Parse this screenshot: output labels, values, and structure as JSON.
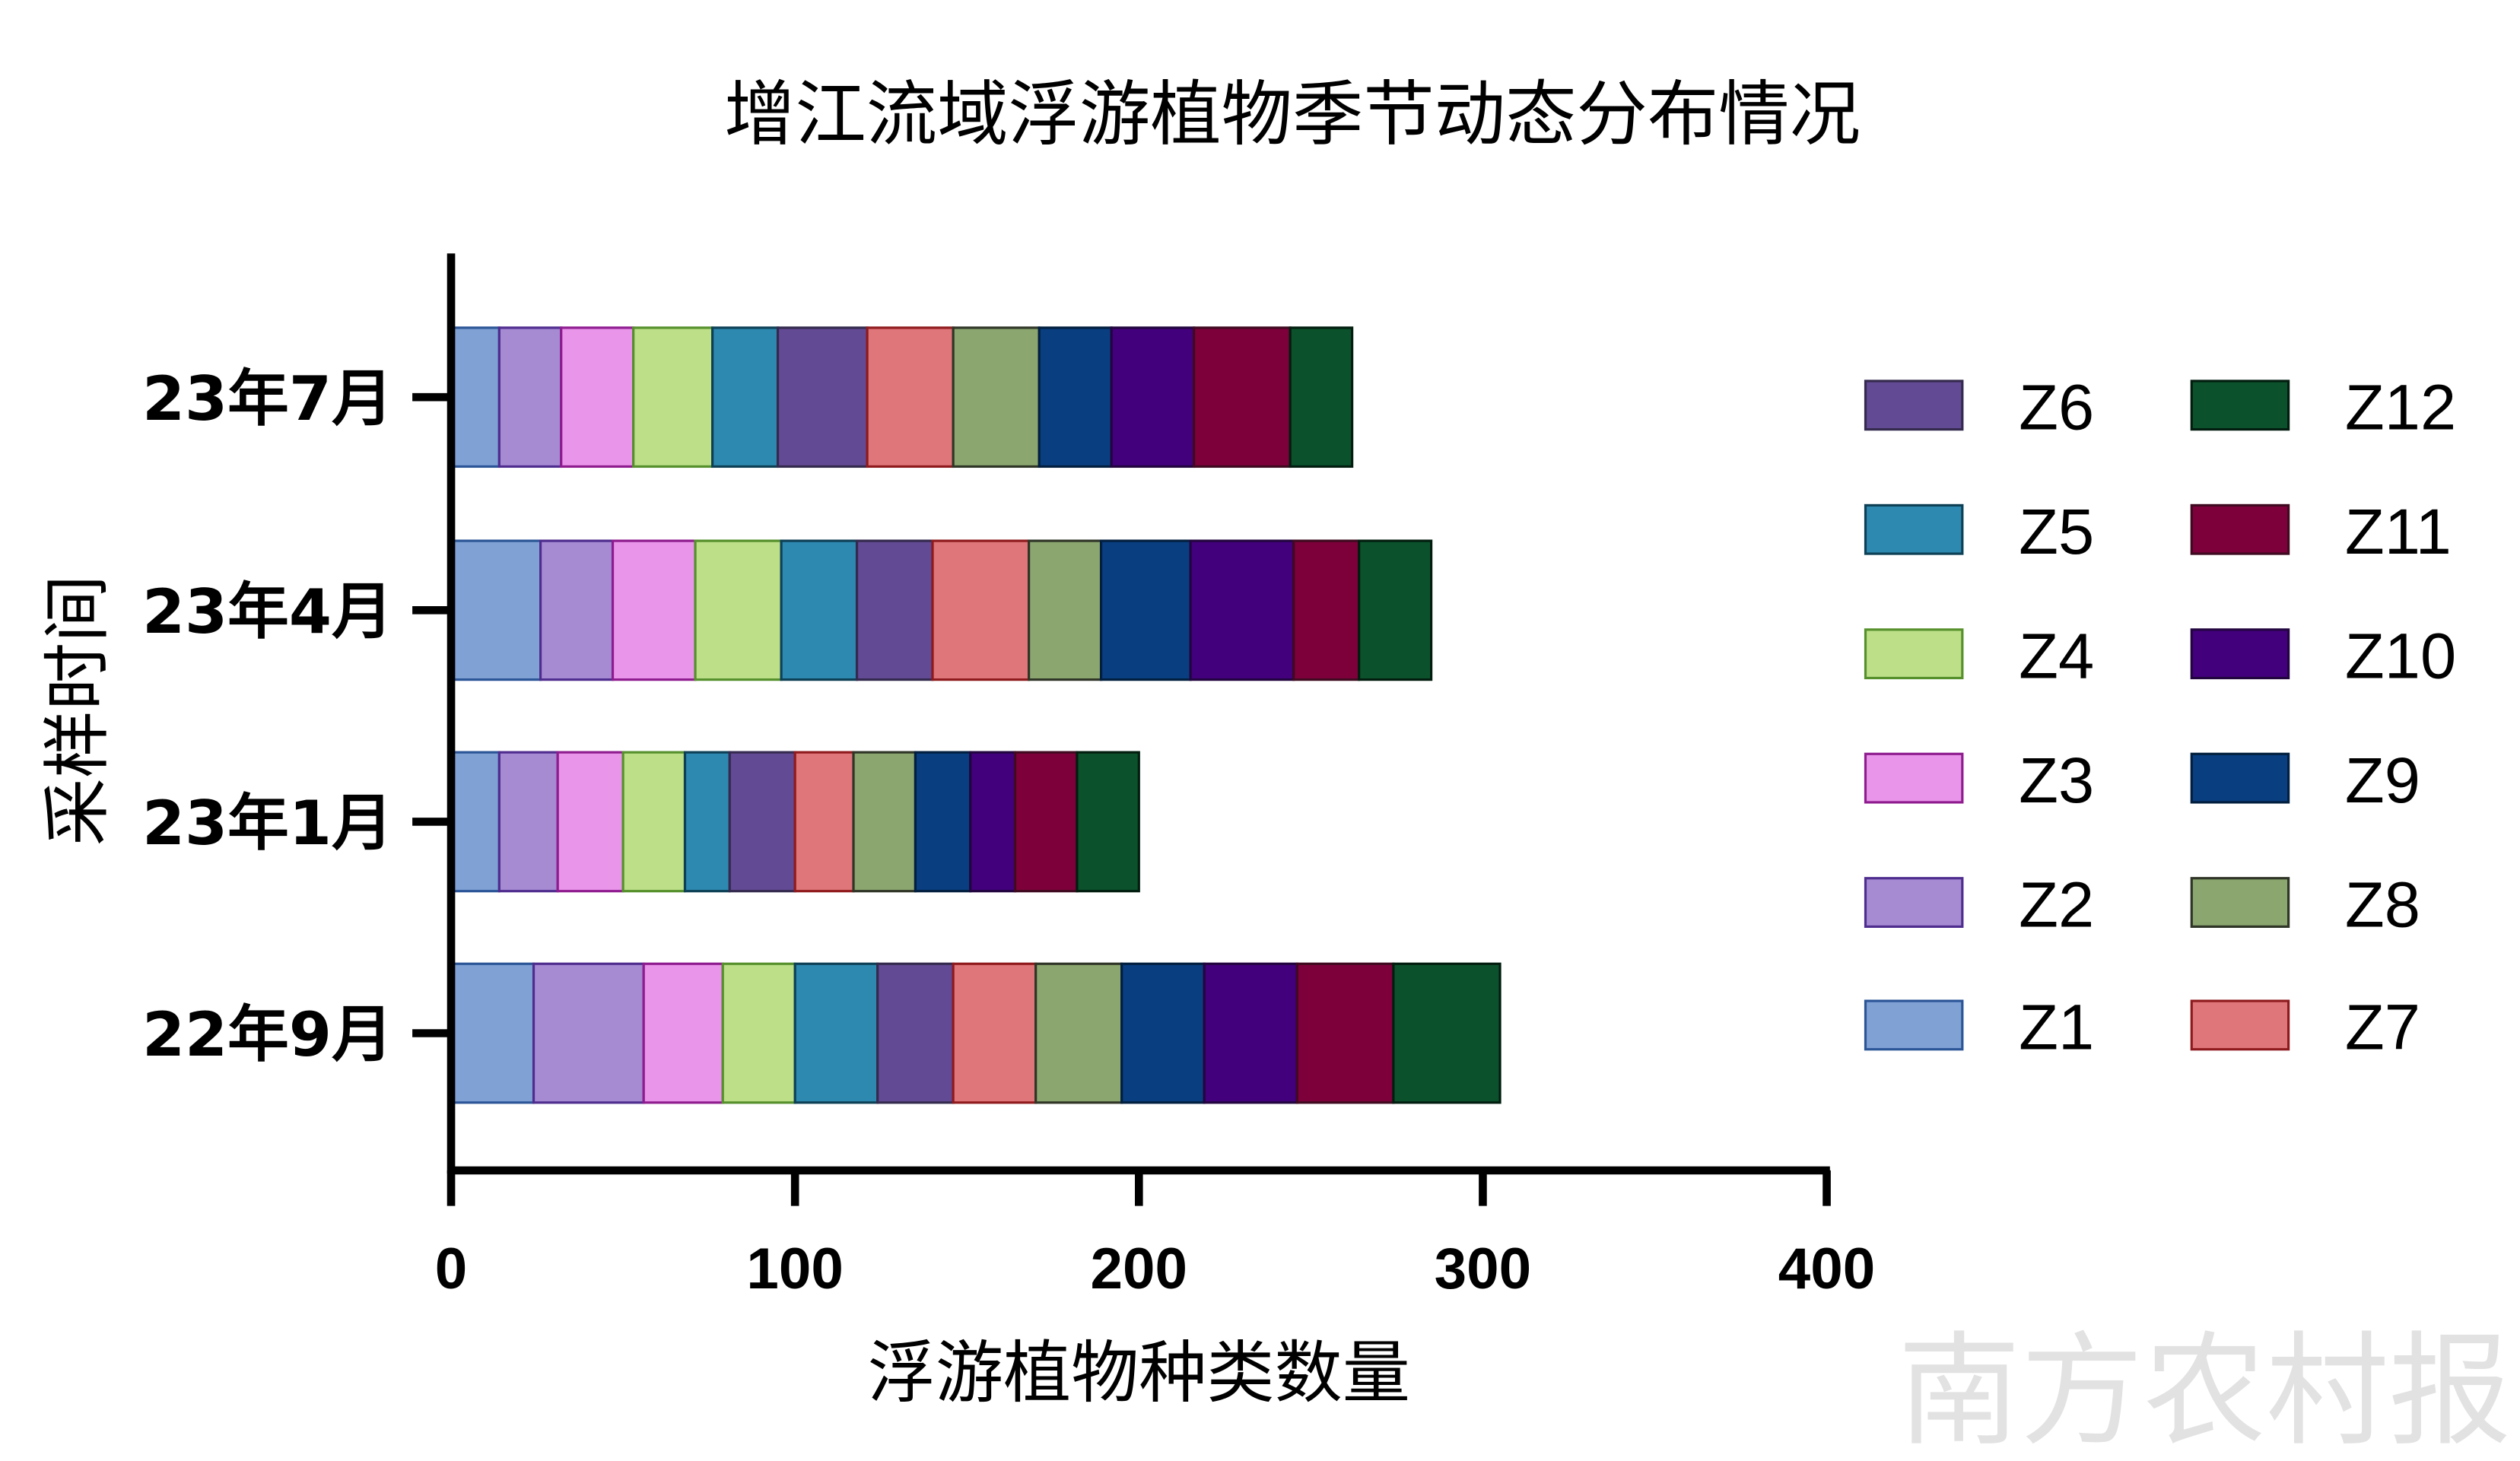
{
  "chart_data": {
    "type": "bar",
    "orientation": "horizontal",
    "stacked": true,
    "title": "增江流域浮游植物季节动态分布情况",
    "xlabel": "浮游植物种类数量",
    "ylabel": "采样时间",
    "xlim": [
      0,
      400
    ],
    "xticks": [
      "0",
      "100",
      "200",
      "300",
      "400"
    ],
    "categories": [
      "23年7月",
      "23年4月",
      "23年1月",
      "22年9月"
    ],
    "legend_position": "right",
    "grid": false,
    "series": [
      {
        "name": "Z1",
        "color": "#7FA1D4",
        "edge": "#2B5597",
        "values": [
          14,
          26,
          14,
          24
        ]
      },
      {
        "name": "Z2",
        "color": "#A68BD3",
        "edge": "#4F2D8F",
        "values": [
          18,
          21,
          17,
          32
        ]
      },
      {
        "name": "Z3",
        "color": "#E996EA",
        "edge": "#8F1C8F",
        "values": [
          21,
          24,
          19,
          23
        ]
      },
      {
        "name": "Z4",
        "color": "#BCDF88",
        "edge": "#55902C",
        "values": [
          23,
          25,
          18,
          21
        ]
      },
      {
        "name": "Z5",
        "color": "#2E89B0",
        "edge": "#0D4055",
        "values": [
          19,
          22,
          13,
          24
        ]
      },
      {
        "name": "Z6",
        "color": "#634A94",
        "edge": "#342A4E",
        "values": [
          26,
          22,
          19,
          22
        ]
      },
      {
        "name": "Z7",
        "color": "#DF7679",
        "edge": "#8F1A1D",
        "values": [
          25,
          28,
          17,
          24
        ]
      },
      {
        "name": "Z8",
        "color": "#8BA66F",
        "edge": "#2F3527",
        "values": [
          25,
          21,
          18,
          25
        ]
      },
      {
        "name": "Z9",
        "color": "#093E80",
        "edge": "#021F3F",
        "values": [
          21,
          26,
          16,
          24
        ]
      },
      {
        "name": "Z10",
        "color": "#42007C",
        "edge": "#22053F",
        "values": [
          24,
          30,
          13,
          27
        ]
      },
      {
        "name": "Z11",
        "color": "#7E003A",
        "edge": "#3F0A20",
        "values": [
          28,
          19,
          18,
          28
        ]
      },
      {
        "name": "Z12",
        "color": "#0B522C",
        "edge": "#021D0F",
        "values": [
          18,
          21,
          18,
          31
        ]
      }
    ],
    "legend_columns": [
      [
        "Z6",
        "Z5",
        "Z4",
        "Z3",
        "Z2",
        "Z1"
      ],
      [
        "Z12",
        "Z11",
        "Z10",
        "Z9",
        "Z8",
        "Z7"
      ]
    ]
  },
  "watermark": "南方农村报"
}
